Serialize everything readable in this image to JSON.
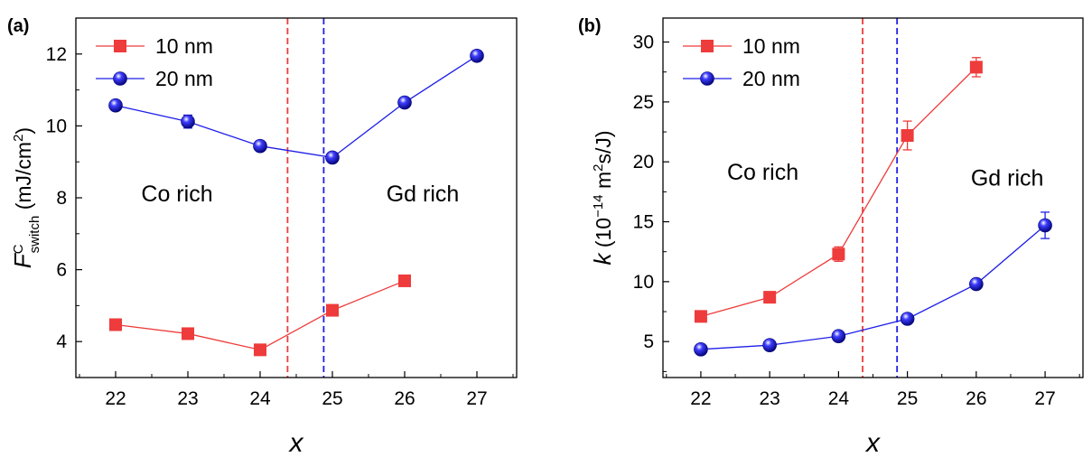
{
  "chart_data": [
    {
      "panel_label": "(a)",
      "type": "line",
      "xlabel": "x",
      "ylabel": {
        "symbol": "F",
        "sup": "C",
        "sub": "switch",
        "unit_open": " (mJ/cm",
        "unit_sup": "2",
        "unit_close": ")"
      },
      "xlim": [
        21.45,
        27.55
      ],
      "ylim": [
        3.0,
        13.0
      ],
      "xticks": [
        "22",
        "23",
        "24",
        "25",
        "26",
        "27"
      ],
      "yticks": [
        "4",
        "6",
        "8",
        "10",
        "12"
      ],
      "series": [
        {
          "name": "10 nm",
          "color": "#ee3b3b",
          "marker": "square",
          "x": [
            22,
            23,
            24,
            25,
            26
          ],
          "y": [
            4.47,
            4.22,
            3.77,
            4.87,
            5.69
          ],
          "err": [
            0,
            0,
            0,
            0,
            0
          ]
        },
        {
          "name": "20 nm",
          "color": "#1f1fe8",
          "marker": "sphere",
          "x": [
            22,
            23,
            24,
            25,
            26,
            27
          ],
          "y": [
            10.57,
            10.12,
            9.44,
            9.12,
            10.65,
            11.95
          ],
          "err": [
            0.08,
            0.18,
            0,
            0,
            0,
            0.05
          ]
        }
      ],
      "vlines": [
        {
          "x": 24.38,
          "color": "#ee3b3b"
        },
        {
          "x": 24.88,
          "color": "#1f1fe8"
        }
      ],
      "annotations": [
        {
          "text": "Co rich",
          "x": 22.85,
          "y": 7.9
        },
        {
          "text": "Gd rich",
          "x": 26.25,
          "y": 7.9
        }
      ],
      "legend": "top-left"
    },
    {
      "panel_label": "(b)",
      "type": "line",
      "xlabel": "x",
      "ylabel": {
        "symbol": "k",
        "unit_open": " (10",
        "unit_sup": "−14",
        "unit_mid": " m",
        "unit_sup2": "2",
        "unit_close": "s/J)"
      },
      "xlim": [
        21.45,
        27.55
      ],
      "ylim": [
        2.0,
        32.0
      ],
      "xticks": [
        "22",
        "23",
        "24",
        "25",
        "26",
        "27"
      ],
      "yticks": [
        "5",
        "10",
        "15",
        "20",
        "25",
        "30"
      ],
      "series": [
        {
          "name": "10 nm",
          "color": "#ee3b3b",
          "marker": "square",
          "x": [
            22,
            23,
            24,
            25,
            26
          ],
          "y": [
            7.1,
            8.7,
            12.3,
            22.2,
            27.9
          ],
          "err": [
            0.2,
            0.2,
            0.6,
            1.2,
            0.8
          ]
        },
        {
          "name": "20 nm",
          "color": "#1f1fe8",
          "marker": "sphere",
          "x": [
            22,
            23,
            24,
            25,
            26,
            27
          ],
          "y": [
            4.35,
            4.7,
            5.45,
            6.9,
            9.8,
            14.7
          ],
          "err": [
            0.15,
            0.15,
            0.15,
            0.15,
            0.2,
            1.1
          ]
        }
      ],
      "vlines": [
        {
          "x": 24.35,
          "color": "#ee3b3b"
        },
        {
          "x": 24.85,
          "color": "#1f1fe8"
        }
      ],
      "annotations": [
        {
          "text": "Co rich",
          "x": 22.9,
          "y": 18.5
        },
        {
          "text": "Gd rich",
          "x": 26.45,
          "y": 18.0
        }
      ],
      "legend": "top-left"
    }
  ]
}
